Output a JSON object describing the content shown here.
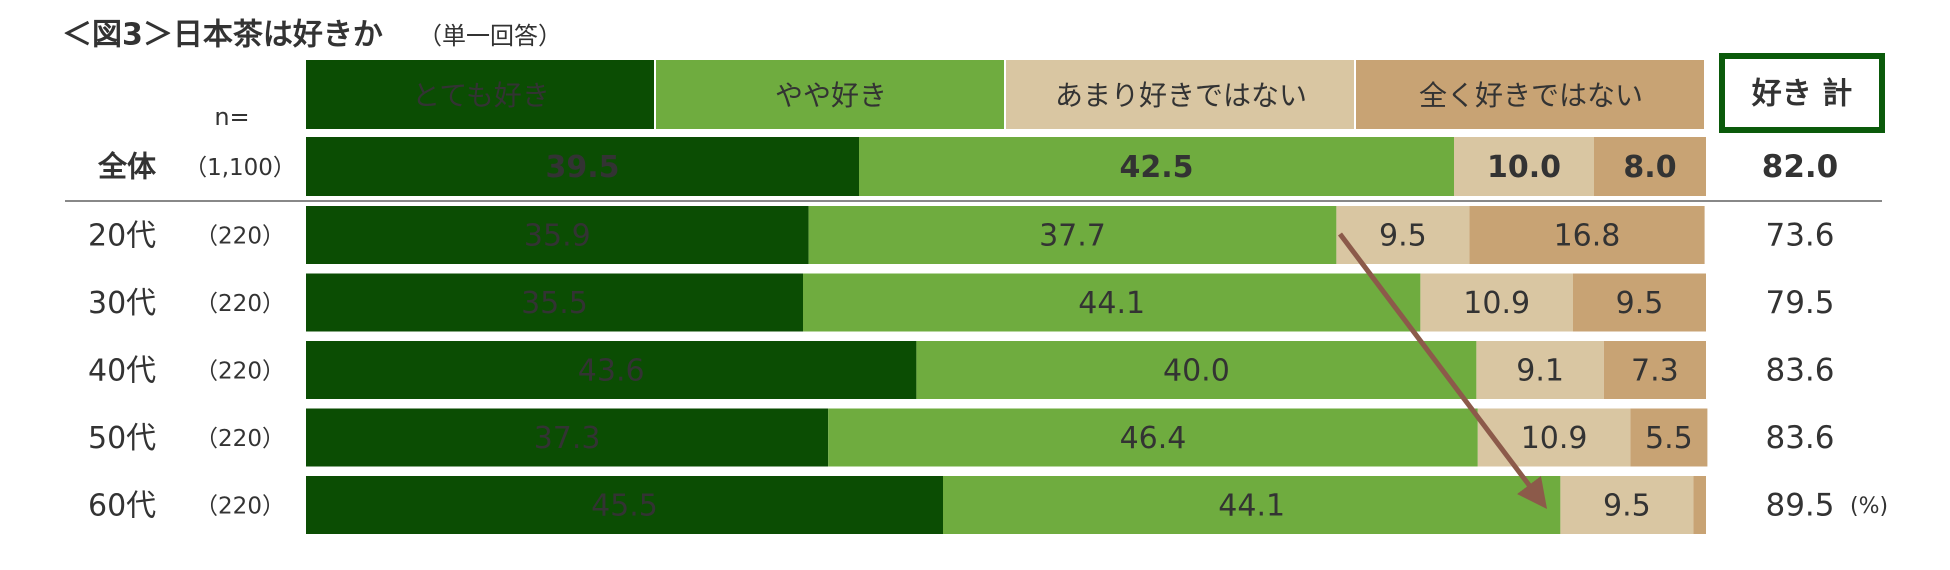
{
  "chart_data": {
    "type": "stacked-bar-horizontal",
    "title": "＜図3＞日本茶は好きか",
    "subtitle": "（単一回答）",
    "n_header": "n=",
    "categories": [
      "全体",
      "20代",
      "30代",
      "40代",
      "50代",
      "60代"
    ],
    "n_labels": [
      "（1,100）",
      "（220）",
      "（220）",
      "（220）",
      "（220）",
      "（220）"
    ],
    "xlim": [
      0,
      100
    ],
    "series": [
      {
        "name": "とても好き",
        "color": "#0b4d03",
        "values": [
          39.5,
          35.9,
          35.5,
          43.6,
          37.3,
          45.5
        ],
        "value_labels": [
          "39.5",
          "35.9",
          "35.5",
          "43.6",
          "37.3",
          "45.5"
        ]
      },
      {
        "name": "やや好き",
        "color": "#6fac3f",
        "values": [
          42.5,
          37.7,
          44.1,
          40.0,
          46.4,
          44.1
        ],
        "value_labels": [
          "42.5",
          "37.7",
          "44.1",
          "40.0",
          "46.4",
          "44.1"
        ]
      },
      {
        "name": "あまり好きではない",
        "color": "#d9c6a2",
        "values": [
          10.0,
          9.5,
          10.9,
          9.1,
          10.9,
          9.5
        ],
        "value_labels": [
          "10.0",
          "9.5",
          "10.9",
          "9.1",
          "10.9",
          "9.5"
        ]
      },
      {
        "name": "全く好きではない",
        "color": "#c8a374",
        "values": [
          8.0,
          16.8,
          9.5,
          7.3,
          5.5,
          0.9
        ],
        "value_labels": [
          "8.0",
          "16.8",
          "9.5",
          "7.3",
          "5.5",
          null
        ]
      }
    ],
    "totals": {
      "header": "好き 計",
      "values": [
        82.0,
        73.6,
        79.5,
        83.6,
        83.6,
        89.5
      ],
      "value_labels": [
        "82.0",
        "73.6",
        "79.5",
        "83.6",
        "83.6",
        "89.5"
      ]
    },
    "unit": "(%)"
  }
}
